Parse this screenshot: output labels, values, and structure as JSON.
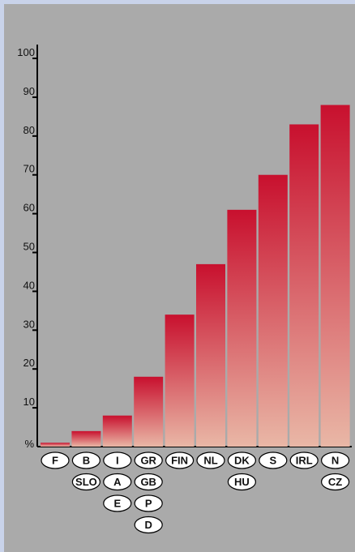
{
  "chart_data": {
    "type": "bar",
    "title": "",
    "xlabel": "",
    "ylabel": "%",
    "ylim": [
      0,
      100
    ],
    "yticks": [
      10,
      20,
      30,
      40,
      50,
      60,
      70,
      80,
      90,
      100
    ],
    "grid": false,
    "categories": [
      [
        "F"
      ],
      [
        "B",
        "SLO"
      ],
      [
        "I",
        "A",
        "E"
      ],
      [
        "GR",
        "GB",
        "P",
        "D"
      ],
      [
        "FIN"
      ],
      [
        "NL"
      ],
      [
        "DK",
        "HU"
      ],
      [
        "S"
      ],
      [
        "IRL"
      ],
      [
        "N",
        "CZ"
      ]
    ],
    "values": [
      1,
      4,
      8,
      18,
      34,
      47,
      61,
      70,
      83,
      88
    ],
    "colors": {
      "bar_top": "#c8102e",
      "bar_bottom": "#e9b7a6",
      "panel": "#aaaaaa",
      "frame": "#c9d3ea",
      "axis": "#000000",
      "pill_fill": "#ffffff"
    }
  }
}
